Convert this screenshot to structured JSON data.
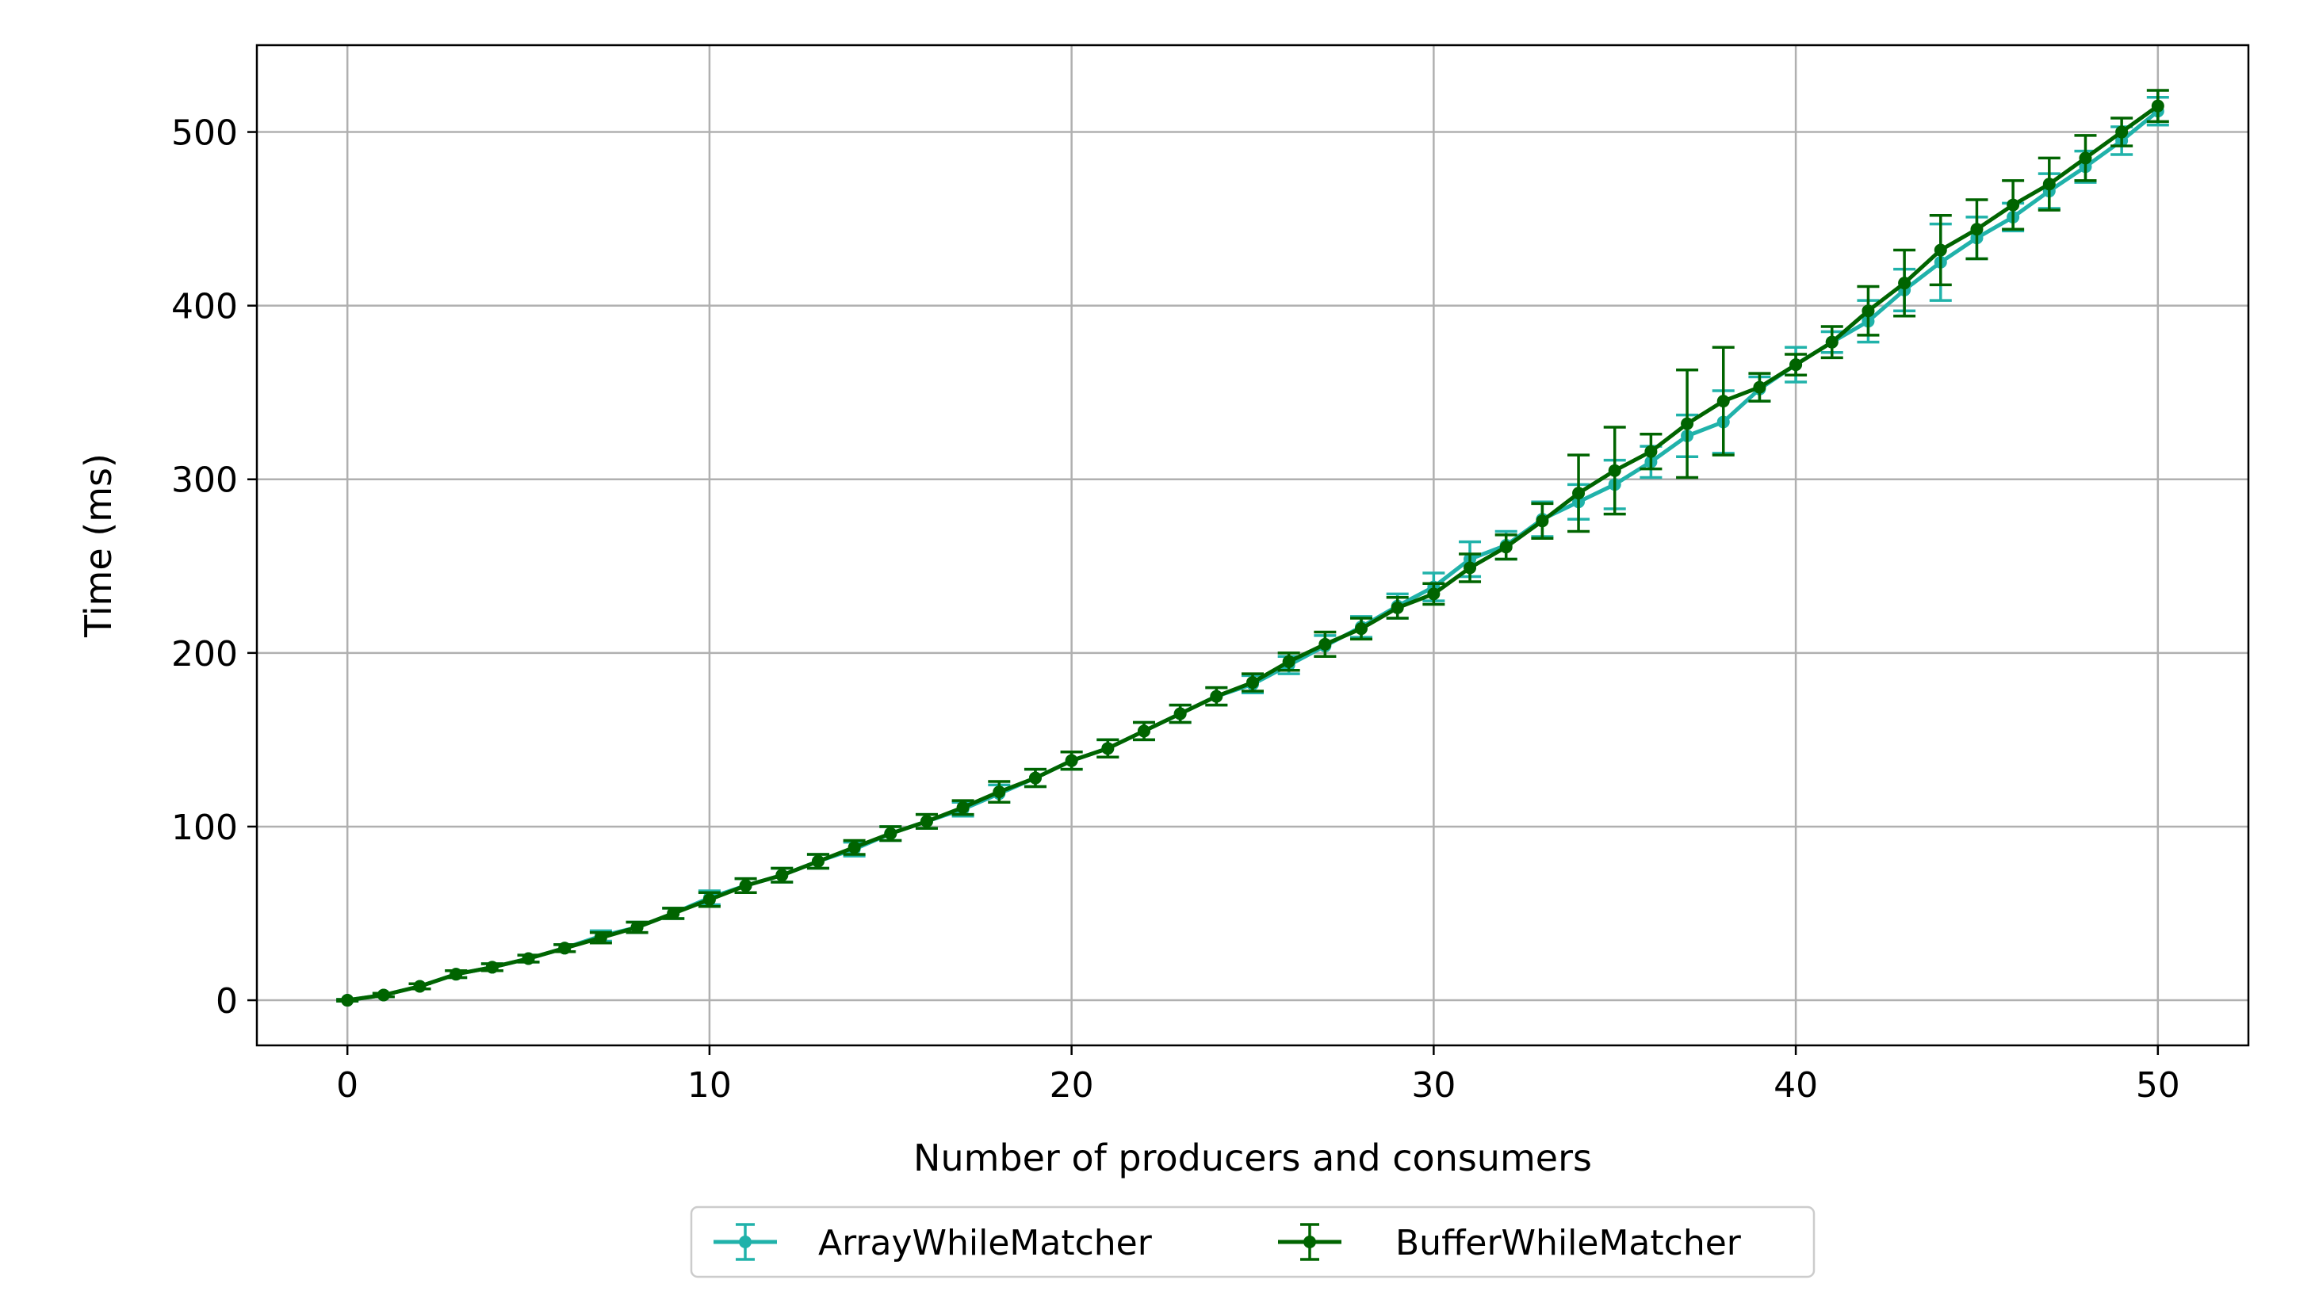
{
  "chart_data": {
    "type": "line",
    "title": "",
    "xlabel": "Number of producers and consumers",
    "ylabel": "Time (ms)",
    "xlim": [
      -2.5,
      52.5
    ],
    "ylim": [
      -26,
      550
    ],
    "xticks": [
      0,
      10,
      20,
      30,
      40,
      50
    ],
    "yticks": [
      0,
      100,
      200,
      300,
      400,
      500
    ],
    "grid": true,
    "legend_position": "bottom-center",
    "x": [
      0,
      1,
      2,
      3,
      4,
      5,
      6,
      7,
      8,
      9,
      10,
      11,
      12,
      13,
      14,
      15,
      16,
      17,
      18,
      19,
      20,
      21,
      22,
      23,
      24,
      25,
      26,
      27,
      28,
      29,
      30,
      31,
      32,
      33,
      34,
      35,
      36,
      37,
      38,
      39,
      40,
      41,
      42,
      43,
      44,
      45,
      46,
      47,
      48,
      49,
      50
    ],
    "series": [
      {
        "name": "ArrayWhileMatcher",
        "color": "#20b2aa",
        "values": [
          0,
          3,
          8,
          15,
          19,
          24,
          30,
          37,
          42,
          50,
          59,
          66,
          72,
          80,
          87,
          96,
          103,
          110,
          119,
          128,
          138,
          145,
          155,
          165,
          175,
          182,
          193,
          204,
          215,
          227,
          238,
          254,
          262,
          277,
          287,
          297,
          310,
          325,
          333,
          352,
          366,
          379,
          391,
          409,
          425,
          439,
          451,
          466,
          480,
          495,
          512
        ],
        "errors": [
          0.5,
          1,
          1.5,
          2,
          2,
          2,
          2,
          3,
          3,
          3,
          4,
          4,
          4,
          4,
          4,
          4,
          4,
          4,
          5,
          5,
          5,
          5,
          5,
          5,
          5,
          5,
          5,
          6,
          6,
          7,
          8,
          10,
          8,
          10,
          10,
          14,
          9,
          12,
          18,
          7,
          10,
          6,
          12,
          12,
          22,
          12,
          8,
          10,
          9,
          8,
          8
        ]
      },
      {
        "name": "BufferWhileMatcher",
        "color": "#006400",
        "values": [
          0,
          3,
          8,
          15,
          19,
          24,
          30,
          36,
          42,
          50,
          58,
          66,
          72,
          80,
          88,
          96,
          103,
          111,
          120,
          128,
          138,
          145,
          155,
          165,
          175,
          183,
          195,
          205,
          214,
          226,
          234,
          249,
          261,
          276,
          292,
          305,
          316,
          332,
          345,
          353,
          366,
          379,
          397,
          413,
          432,
          444,
          458,
          470,
          485,
          500,
          515
        ],
        "errors": [
          0.5,
          1,
          1.5,
          2,
          2,
          2,
          2,
          3,
          3,
          3,
          4,
          4,
          4,
          4,
          4,
          4,
          4,
          4,
          6,
          5,
          5,
          5,
          5,
          5,
          5,
          5,
          5,
          7,
          6,
          6,
          6,
          8,
          7,
          10,
          22,
          25,
          10,
          31,
          31,
          8,
          6,
          9,
          14,
          19,
          20,
          17,
          14,
          15,
          13,
          8,
          9
        ]
      }
    ]
  }
}
